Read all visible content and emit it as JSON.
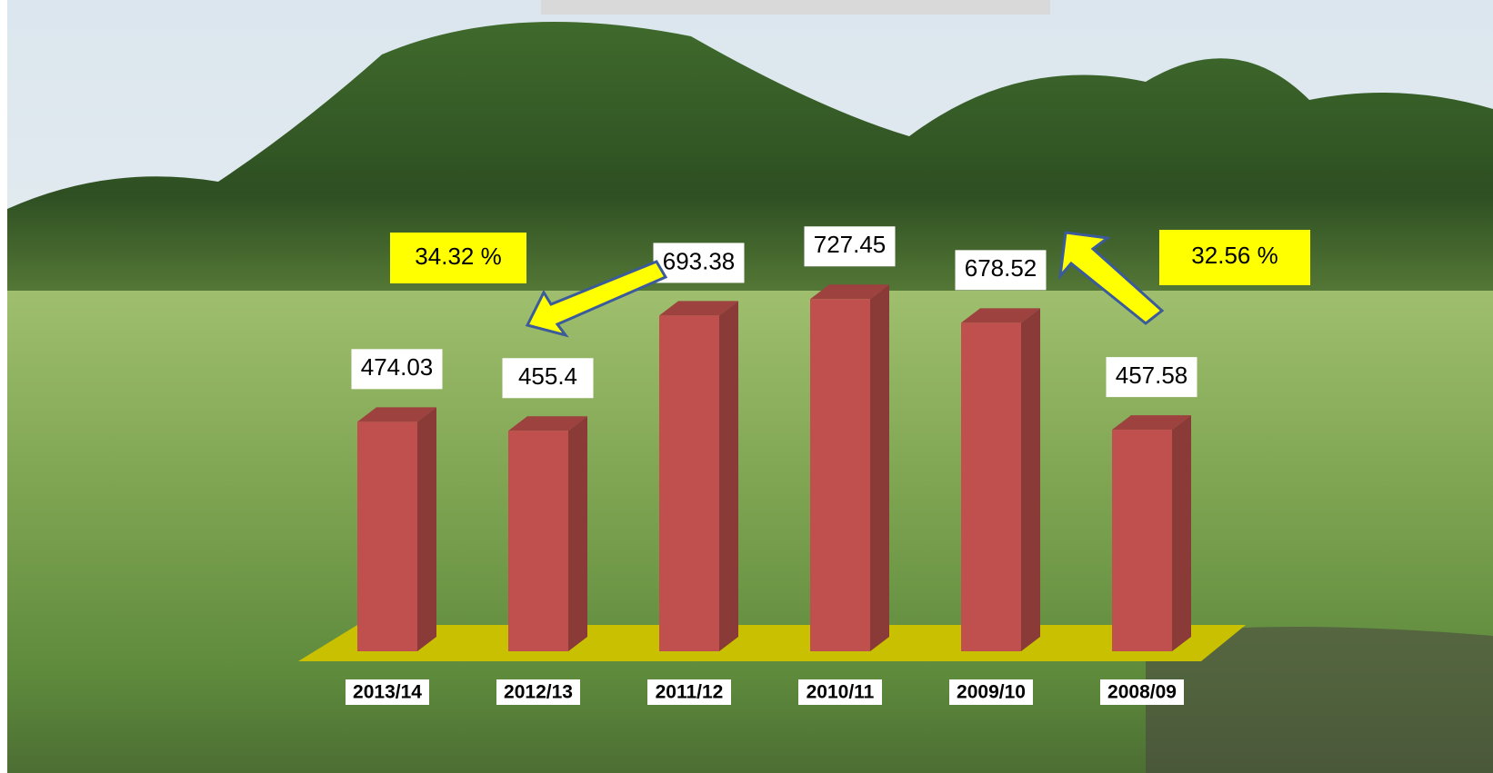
{
  "chart_data": {
    "type": "bar",
    "categories": [
      "2013/14",
      "2012/13",
      "2011/12",
      "2010/11",
      "2009/10",
      "2008/09"
    ],
    "values": [
      474.03,
      455.4,
      693.38,
      727.45,
      678.52,
      457.58
    ],
    "color": "#c0504d",
    "annotations": [
      "34.32 %",
      "32.56 %"
    ]
  }
}
